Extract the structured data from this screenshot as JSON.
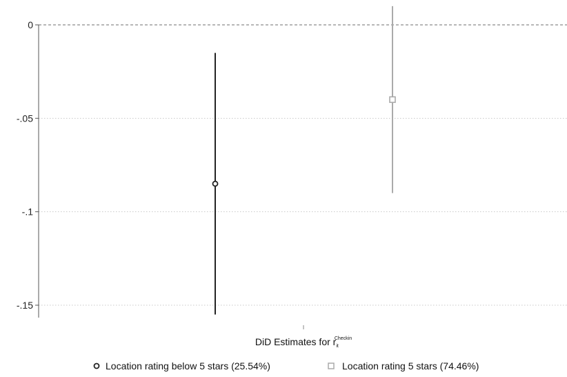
{
  "chart_data": {
    "type": "scatter",
    "x_title_main": "DiD Estimates for r",
    "x_title_sub": "it",
    "x_title_sup": "Checkin",
    "y_ticks": [
      0,
      -0.05,
      -0.1,
      -0.15
    ],
    "y_tick_labels": [
      "0",
      "-.05",
      "-.1",
      "-.15"
    ],
    "ylim": [
      -0.156,
      0.01
    ],
    "reference_line": {
      "y": 0,
      "style": "dashed",
      "color": "#8a8a8a"
    },
    "grid": true,
    "legend_position": "bottom",
    "series": [
      {
        "name": "Location rating below 5 stars (25.54%)",
        "marker": "circle",
        "color": "#222222",
        "estimate": -0.085,
        "ci_low": -0.155,
        "ci_high": -0.015
      },
      {
        "name": "Location rating 5 stars (74.46%)",
        "marker": "square",
        "color": "#aaaaaa",
        "estimate": -0.04,
        "ci_low": -0.09,
        "ci_high": 0.01
      }
    ]
  }
}
